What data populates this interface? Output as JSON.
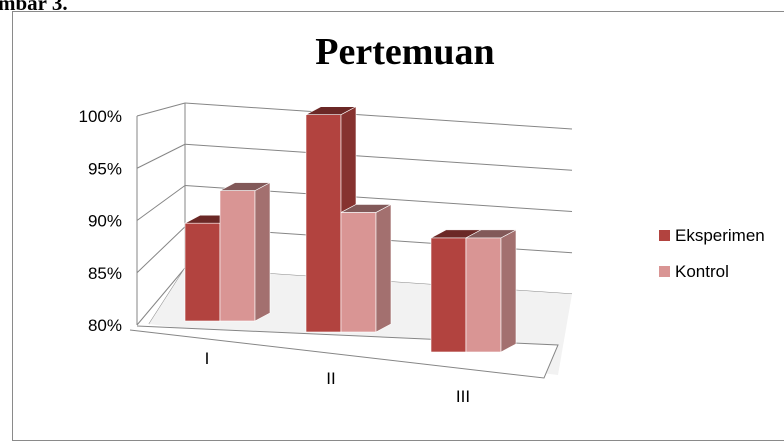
{
  "page": {
    "caption": "mbar 3."
  },
  "colors": {
    "eksperimen": "#b2433f",
    "kontrol": "#d99594",
    "grid": "#868686"
  },
  "chart_data": {
    "type": "bar",
    "title": "Pertemuan",
    "categories": [
      "I",
      "II",
      "III"
    ],
    "series": [
      {
        "name": "Eksperimen",
        "values": [
          0.89,
          1.0,
          0.905
        ]
      },
      {
        "name": "Kontrol",
        "values": [
          0.92,
          0.91,
          0.905
        ]
      }
    ],
    "ylim": [
      0.8,
      1.0
    ],
    "yticks": [
      "80%",
      "85%",
      "90%",
      "95%",
      "100%"
    ],
    "grid": true,
    "legend_position": "right",
    "style": "3d-clustered-column"
  }
}
